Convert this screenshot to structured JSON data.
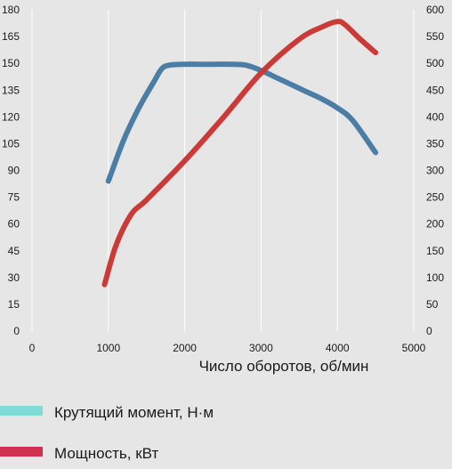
{
  "chart_data": {
    "type": "line",
    "xlabel": "Число оборотов, об/мин",
    "x_ticks": [
      "0",
      "1000",
      "2000",
      "3000",
      "4000",
      "5000"
    ],
    "y_left_ticks": [
      "0",
      "15",
      "30",
      "45",
      "60",
      "75",
      "90",
      "105",
      "120",
      "135",
      "150",
      "165",
      "180"
    ],
    "y_right_ticks": [
      "0",
      "50",
      "100",
      "150",
      "200",
      "250",
      "300",
      "350",
      "400",
      "450",
      "500",
      "550",
      "600"
    ],
    "xlim": [
      0,
      5000
    ],
    "ylim_left": [
      0,
      180
    ],
    "ylim_right": [
      0,
      600
    ],
    "grid": "vertical",
    "legend_position": "bottom",
    "legend_colors": [
      "#7fdcd7",
      "#d2304f"
    ],
    "series": [
      {
        "name": "Крутящий момент, Н·м",
        "axis": "left",
        "color": "#4c7ea5",
        "x": [
          1000,
          1200,
          1400,
          1600,
          1700,
          1800,
          2000,
          2200,
          2400,
          2600,
          2800,
          3000,
          3200,
          3400,
          3600,
          3800,
          4000,
          4200,
          4500
        ],
        "y": [
          84,
          107,
          125,
          140,
          147,
          149,
          149.5,
          149.5,
          149.5,
          149.5,
          149,
          146,
          142,
          138,
          134,
          130,
          125,
          118,
          100
        ]
      },
      {
        "name": "Мощность, кВт",
        "axis": "right",
        "color": "#cc3a38",
        "x": [
          950,
          1100,
          1300,
          1500,
          2000,
          2500,
          3000,
          3500,
          3800,
          4000,
          4100,
          4300,
          4500
        ],
        "y": [
          87,
          160,
          218,
          245,
          318,
          398,
          482,
          545,
          568,
          578,
          572,
          545,
          520
        ]
      }
    ]
  }
}
